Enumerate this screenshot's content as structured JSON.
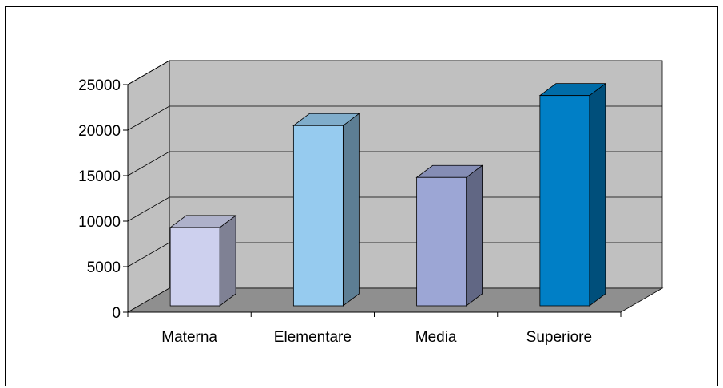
{
  "chart_data": {
    "type": "bar",
    "title": "",
    "xlabel": "",
    "ylabel": "",
    "categories": [
      "Materna",
      "Elementare",
      "Media",
      "Superiore"
    ],
    "values": [
      8600,
      19800,
      14100,
      23100
    ],
    "ylim": [
      0,
      25000
    ],
    "yticks": [
      0,
      5000,
      10000,
      15000,
      20000,
      25000
    ],
    "grid": true,
    "legend": "none",
    "three_d": true,
    "colors": {
      "bars": [
        "#cdd0ee",
        "#96cbef",
        "#9ca6d5",
        "#007fc6"
      ],
      "wall": "#c0c0c0",
      "floor": "#8f8f8f"
    }
  }
}
